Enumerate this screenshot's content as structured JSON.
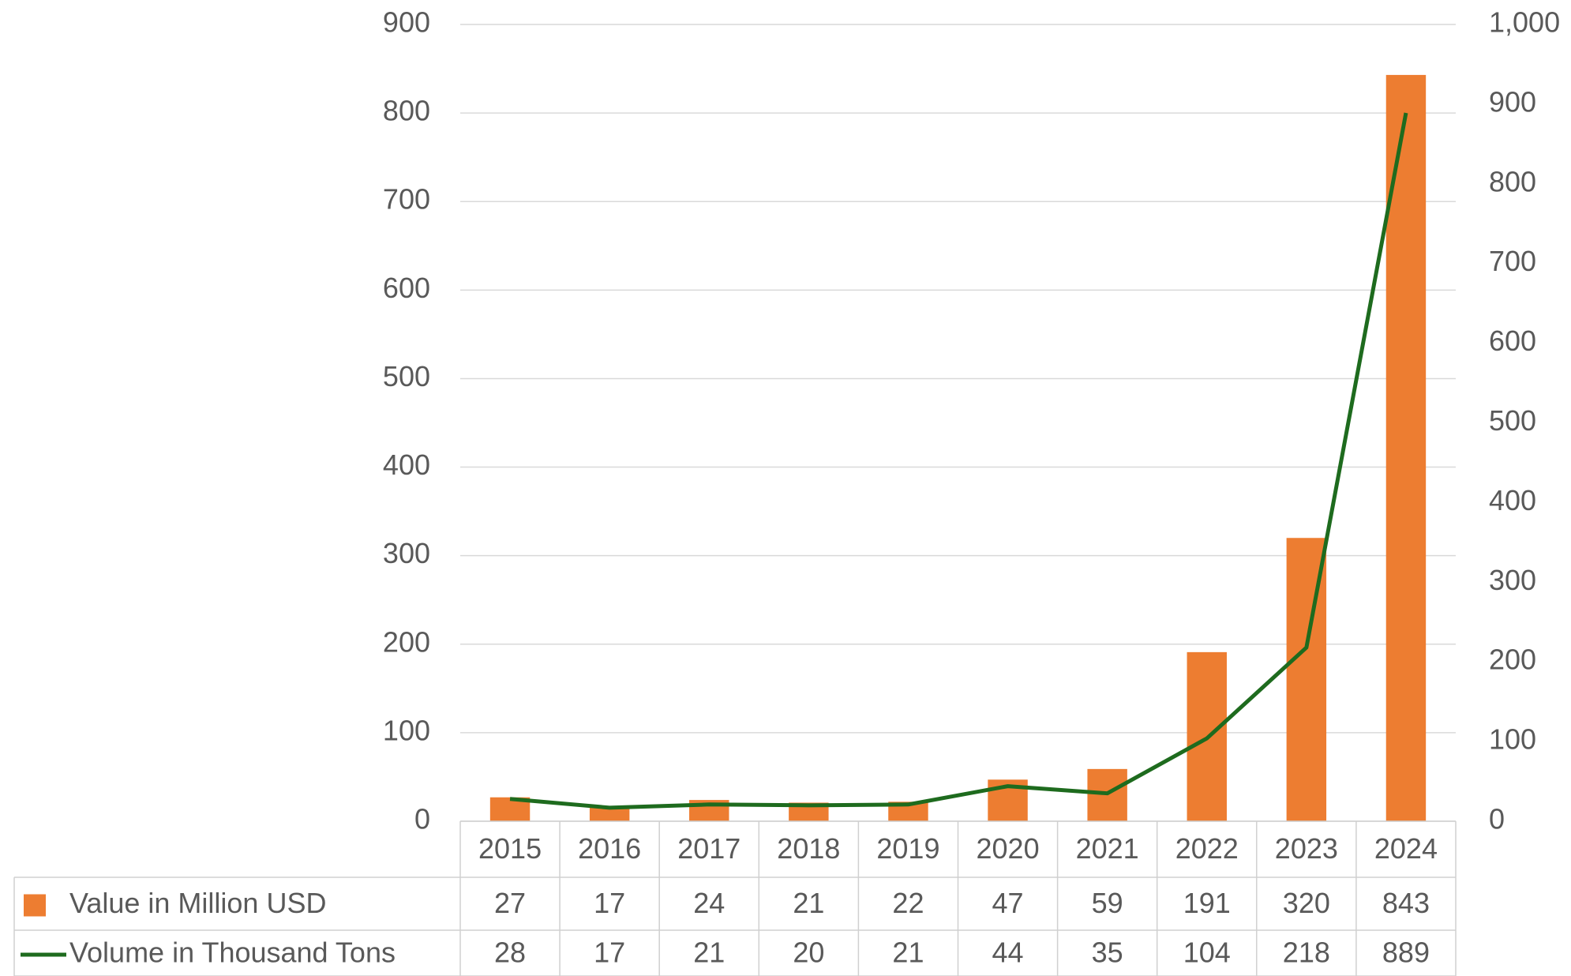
{
  "chart_data": {
    "type": "bar_line",
    "categories": [
      "2015",
      "2016",
      "2017",
      "2018",
      "2019",
      "2020",
      "2021",
      "2022",
      "2023",
      "2024"
    ],
    "series": [
      {
        "name": "Value in Million USD",
        "type": "bar",
        "color": "#ed7d31",
        "values": [
          27,
          17,
          24,
          21,
          22,
          47,
          59,
          191,
          320,
          843
        ]
      },
      {
        "name": "Volume in Thousand Tons",
        "type": "line",
        "axis": "y2",
        "color": "#1e6b1e",
        "values": [
          28,
          17,
          21,
          20,
          21,
          44,
          35,
          104,
          218,
          889
        ]
      }
    ],
    "ylim": [
      0,
      900
    ],
    "yticks": [
      0,
      100,
      200,
      300,
      400,
      500,
      600,
      700,
      800,
      900
    ],
    "y2lim": [
      0,
      1000
    ],
    "y2ticks": [
      0,
      100,
      200,
      300,
      400,
      500,
      600,
      700,
      800,
      900,
      {
        "value": 1000,
        "label": "1,000"
      }
    ],
    "grid": true,
    "data_table": true
  }
}
